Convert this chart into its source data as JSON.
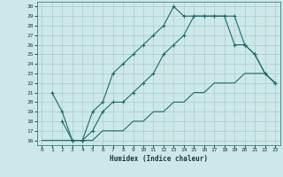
{
  "xlabel": "Humidex (Indice chaleur)",
  "ylabel": "",
  "background_color": "#cde8e8",
  "grid_color": "#aacccc",
  "line_color": "#1a6b6b",
  "xlim": [
    -0.5,
    23.5
  ],
  "ylim": [
    15.5,
    30.5
  ],
  "xticks": [
    0,
    1,
    2,
    3,
    4,
    5,
    6,
    7,
    8,
    9,
    10,
    11,
    12,
    13,
    14,
    15,
    16,
    17,
    18,
    19,
    20,
    21,
    22,
    23
  ],
  "yticks": [
    16,
    17,
    18,
    19,
    20,
    21,
    22,
    23,
    24,
    25,
    26,
    27,
    28,
    29,
    30
  ],
  "line1_x": [
    1,
    2,
    3,
    4,
    5,
    6,
    7,
    8,
    9,
    10,
    11,
    12,
    13,
    14,
    15,
    16,
    17,
    18,
    19,
    20,
    21,
    22,
    23
  ],
  "line1_y": [
    21,
    19,
    16,
    16,
    19,
    20,
    23,
    24,
    25,
    26,
    27,
    28,
    30,
    29,
    29,
    29,
    29,
    29,
    29,
    26,
    25,
    23,
    22
  ],
  "line2_x": [
    2,
    3,
    4,
    5,
    6,
    7,
    8,
    9,
    10,
    11,
    12,
    13,
    14,
    15,
    16,
    17,
    18,
    19,
    20,
    21,
    22,
    23
  ],
  "line2_y": [
    18,
    16,
    16,
    17,
    19,
    20,
    20,
    21,
    22,
    23,
    25,
    26,
    27,
    29,
    29,
    29,
    29,
    26,
    26,
    25,
    23,
    22
  ],
  "line3_x": [
    0,
    1,
    2,
    3,
    4,
    5,
    6,
    7,
    8,
    9,
    10,
    11,
    12,
    13,
    14,
    15,
    16,
    17,
    18,
    19,
    20,
    21,
    22,
    23
  ],
  "line3_y": [
    16,
    16,
    16,
    16,
    16,
    16,
    17,
    17,
    17,
    18,
    18,
    19,
    19,
    20,
    20,
    21,
    21,
    22,
    22,
    22,
    23,
    23,
    23,
    22
  ]
}
